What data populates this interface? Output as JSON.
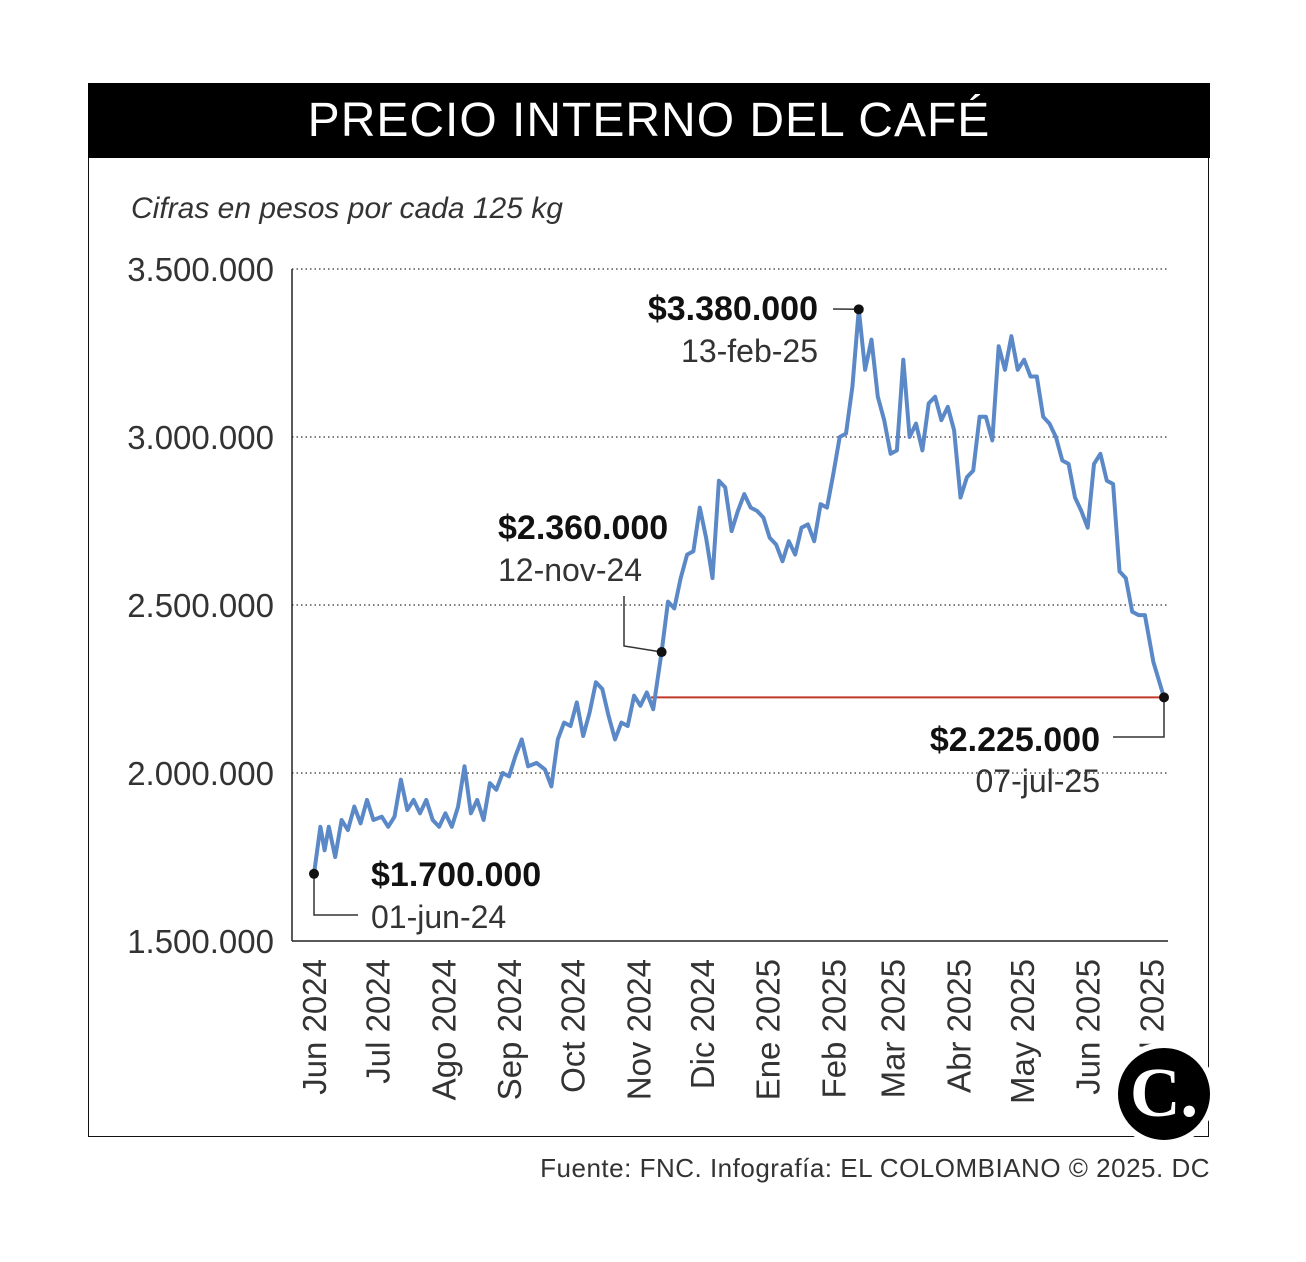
{
  "title": "PRECIO INTERNO DEL CAFÉ",
  "subtitle": "Cifras en pesos por cada 125 kg",
  "source": "Fuente: FNC. Infografía: EL COLOMBIANO © 2025. DC",
  "logo_text": "C.",
  "colors": {
    "line": "#5b88c6",
    "reference": "#c0392b",
    "title_bg": "#000000"
  },
  "chart_data": {
    "type": "line",
    "title": "PRECIO INTERNO DEL CAFÉ",
    "ylabel": "Cifras en pesos por cada 125 kg",
    "ylim": [
      1500000,
      3500000
    ],
    "yticks": [
      3500000,
      3000000,
      2500000,
      2000000,
      1500000
    ],
    "ytick_labels": [
      "3.500.000",
      "3.000.000",
      "2.500.000",
      "2.000.000",
      "1.500.000"
    ],
    "grid": "horizontal dotted",
    "xlim": [
      "2024-06-01",
      "2025-07-07"
    ],
    "xtick_labels": [
      "Jun 2024",
      "Jul 2024",
      "Ago 2024",
      "Sep 2024",
      "Oct 2024",
      "Nov 2024",
      "Dic 2024",
      "Ene 2025",
      "Feb 2025",
      "Mar 2025",
      "Abr 2025",
      "May 2025",
      "Jun 2025",
      "Jul 2025"
    ],
    "xtick_dates": [
      "2024-06-01",
      "2024-07-01",
      "2024-08-01",
      "2024-09-01",
      "2024-10-01",
      "2024-11-01",
      "2024-12-01",
      "2025-01-01",
      "2025-02-01",
      "2025-03-01",
      "2025-04-01",
      "2025-05-01",
      "2025-06-01",
      "2025-07-01"
    ],
    "series": [
      {
        "points": [
          [
            "2024-06-01",
            1700000
          ],
          [
            "2024-06-04",
            1840000
          ],
          [
            "2024-06-06",
            1770000
          ],
          [
            "2024-06-08",
            1840000
          ],
          [
            "2024-06-11",
            1750000
          ],
          [
            "2024-06-14",
            1860000
          ],
          [
            "2024-06-17",
            1830000
          ],
          [
            "2024-06-20",
            1900000
          ],
          [
            "2024-06-23",
            1850000
          ],
          [
            "2024-06-26",
            1920000
          ],
          [
            "2024-06-29",
            1860000
          ],
          [
            "2024-07-03",
            1870000
          ],
          [
            "2024-07-06",
            1840000
          ],
          [
            "2024-07-09",
            1870000
          ],
          [
            "2024-07-12",
            1980000
          ],
          [
            "2024-07-15",
            1890000
          ],
          [
            "2024-07-18",
            1920000
          ],
          [
            "2024-07-21",
            1880000
          ],
          [
            "2024-07-24",
            1920000
          ],
          [
            "2024-07-27",
            1860000
          ],
          [
            "2024-07-30",
            1840000
          ],
          [
            "2024-08-02",
            1880000
          ],
          [
            "2024-08-05",
            1840000
          ],
          [
            "2024-08-08",
            1900000
          ],
          [
            "2024-08-11",
            2020000
          ],
          [
            "2024-08-14",
            1880000
          ],
          [
            "2024-08-17",
            1920000
          ],
          [
            "2024-08-20",
            1860000
          ],
          [
            "2024-08-23",
            1970000
          ],
          [
            "2024-08-26",
            1950000
          ],
          [
            "2024-08-29",
            2000000
          ],
          [
            "2024-09-01",
            1990000
          ],
          [
            "2024-09-04",
            2050000
          ],
          [
            "2024-09-07",
            2100000
          ],
          [
            "2024-09-10",
            2020000
          ],
          [
            "2024-09-14",
            2030000
          ],
          [
            "2024-09-18",
            2010000
          ],
          [
            "2024-09-21",
            1960000
          ],
          [
            "2024-09-24",
            2100000
          ],
          [
            "2024-09-27",
            2150000
          ],
          [
            "2024-09-30",
            2140000
          ],
          [
            "2024-10-03",
            2210000
          ],
          [
            "2024-10-06",
            2110000
          ],
          [
            "2024-10-09",
            2180000
          ],
          [
            "2024-10-12",
            2270000
          ],
          [
            "2024-10-15",
            2250000
          ],
          [
            "2024-10-18",
            2170000
          ],
          [
            "2024-10-21",
            2100000
          ],
          [
            "2024-10-24",
            2150000
          ],
          [
            "2024-10-27",
            2140000
          ],
          [
            "2024-10-30",
            2230000
          ],
          [
            "2024-11-02",
            2200000
          ],
          [
            "2024-11-05",
            2240000
          ],
          [
            "2024-11-08",
            2190000
          ],
          [
            "2024-11-12",
            2360000
          ],
          [
            "2024-11-15",
            2510000
          ],
          [
            "2024-11-18",
            2490000
          ],
          [
            "2024-11-21",
            2580000
          ],
          [
            "2024-11-24",
            2650000
          ],
          [
            "2024-11-27",
            2660000
          ],
          [
            "2024-11-30",
            2790000
          ],
          [
            "2024-12-03",
            2700000
          ],
          [
            "2024-12-06",
            2580000
          ],
          [
            "2024-12-09",
            2870000
          ],
          [
            "2024-12-12",
            2850000
          ],
          [
            "2024-12-15",
            2720000
          ],
          [
            "2024-12-18",
            2780000
          ],
          [
            "2024-12-21",
            2830000
          ],
          [
            "2024-12-24",
            2790000
          ],
          [
            "2024-12-27",
            2780000
          ],
          [
            "2024-12-30",
            2760000
          ],
          [
            "2025-01-02",
            2700000
          ],
          [
            "2025-01-05",
            2680000
          ],
          [
            "2025-01-08",
            2630000
          ],
          [
            "2025-01-11",
            2690000
          ],
          [
            "2025-01-14",
            2650000
          ],
          [
            "2025-01-17",
            2730000
          ],
          [
            "2025-01-20",
            2740000
          ],
          [
            "2025-01-23",
            2690000
          ],
          [
            "2025-01-26",
            2800000
          ],
          [
            "2025-01-29",
            2790000
          ],
          [
            "2025-02-01",
            2890000
          ],
          [
            "2025-02-04",
            3000000
          ],
          [
            "2025-02-07",
            3010000
          ],
          [
            "2025-02-10",
            3150000
          ],
          [
            "2025-02-13",
            3380000
          ],
          [
            "2025-02-16",
            3200000
          ],
          [
            "2025-02-19",
            3290000
          ],
          [
            "2025-02-22",
            3120000
          ],
          [
            "2025-02-25",
            3050000
          ],
          [
            "2025-02-28",
            2950000
          ],
          [
            "2025-03-03",
            2960000
          ],
          [
            "2025-03-06",
            3230000
          ],
          [
            "2025-03-09",
            3000000
          ],
          [
            "2025-03-12",
            3040000
          ],
          [
            "2025-03-15",
            2960000
          ],
          [
            "2025-03-18",
            3100000
          ],
          [
            "2025-03-21",
            3120000
          ],
          [
            "2025-03-24",
            3050000
          ],
          [
            "2025-03-27",
            3090000
          ],
          [
            "2025-03-30",
            3020000
          ],
          [
            "2025-04-02",
            2820000
          ],
          [
            "2025-04-05",
            2880000
          ],
          [
            "2025-04-08",
            2900000
          ],
          [
            "2025-04-11",
            3060000
          ],
          [
            "2025-04-14",
            3060000
          ],
          [
            "2025-04-17",
            2990000
          ],
          [
            "2025-04-20",
            3270000
          ],
          [
            "2025-04-23",
            3200000
          ],
          [
            "2025-04-26",
            3300000
          ],
          [
            "2025-04-29",
            3200000
          ],
          [
            "2025-05-02",
            3230000
          ],
          [
            "2025-05-05",
            3180000
          ],
          [
            "2025-05-08",
            3180000
          ],
          [
            "2025-05-11",
            3060000
          ],
          [
            "2025-05-14",
            3040000
          ],
          [
            "2025-05-17",
            3000000
          ],
          [
            "2025-05-20",
            2930000
          ],
          [
            "2025-05-23",
            2920000
          ],
          [
            "2025-05-26",
            2820000
          ],
          [
            "2025-05-29",
            2780000
          ],
          [
            "2025-06-01",
            2730000
          ],
          [
            "2025-06-04",
            2920000
          ],
          [
            "2025-06-07",
            2950000
          ],
          [
            "2025-06-10",
            2870000
          ],
          [
            "2025-06-13",
            2860000
          ],
          [
            "2025-06-16",
            2600000
          ],
          [
            "2025-06-19",
            2580000
          ],
          [
            "2025-06-22",
            2480000
          ],
          [
            "2025-06-25",
            2470000
          ],
          [
            "2025-06-28",
            2470000
          ],
          [
            "2025-07-02",
            2330000
          ],
          [
            "2025-07-07",
            2225000
          ]
        ]
      }
    ],
    "reference_line": {
      "value": 2225000,
      "from": "2024-11-07",
      "to": "2025-07-07"
    },
    "annotations": [
      {
        "date": "2024-06-01",
        "value": 1700000,
        "value_label": "$1.700.000",
        "date_label": "01-jun-24"
      },
      {
        "date": "2024-11-12",
        "value": 2360000,
        "value_label": "$2.360.000",
        "date_label": "12-nov-24"
      },
      {
        "date": "2025-02-13",
        "value": 3380000,
        "value_label": "$3.380.000",
        "date_label": "13-feb-25"
      },
      {
        "date": "2025-07-07",
        "value": 2225000,
        "value_label": "$2.225.000",
        "date_label": "07-jul-25"
      }
    ]
  }
}
